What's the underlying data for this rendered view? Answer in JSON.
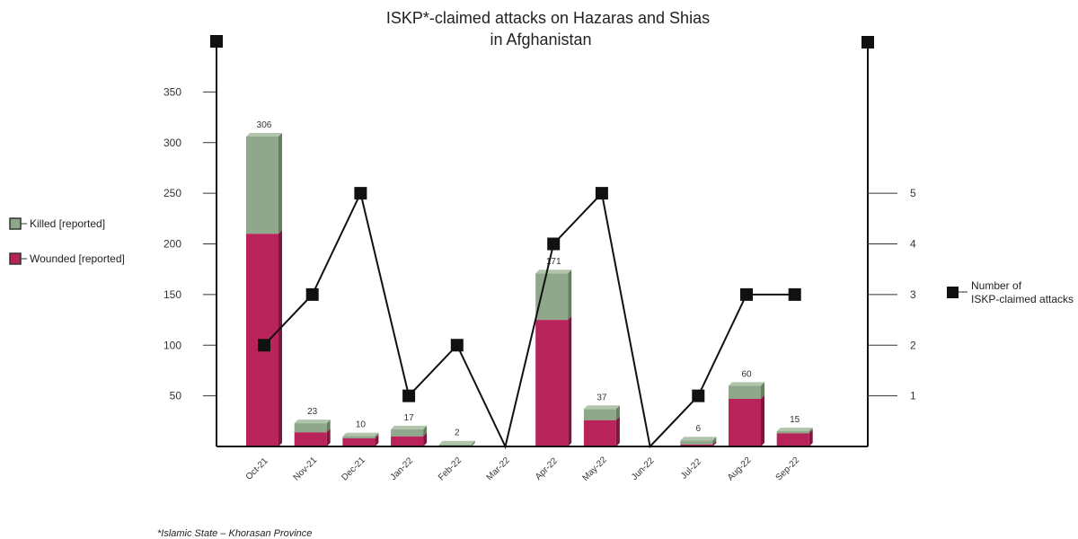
{
  "chart_data": {
    "type": "bar",
    "title_line1": "ISKP*-claimed attacks on Hazaras and Shias",
    "title_line2": "in Afghanistan",
    "categories": [
      "Oct-21",
      "Nov-21",
      "Dec-21",
      "Jan-22",
      "Feb-22",
      "Mar-22",
      "Apr-22",
      "May-22",
      "Jun-22",
      "Jul-22",
      "Aug-22",
      "Sep-22"
    ],
    "stacked": true,
    "series": [
      {
        "name": "Wounded [reported]",
        "color": "#b8235a",
        "values": [
          210,
          14,
          8,
          10,
          0,
          0,
          125,
          26,
          0,
          2,
          47,
          13
        ]
      },
      {
        "name": "Killed [reported]",
        "color": "#8fa88c",
        "values": [
          96,
          9,
          2,
          7,
          2,
          0,
          46,
          11,
          0,
          4,
          13,
          2
        ]
      }
    ],
    "totals": [
      306,
      23,
      10,
      17,
      2,
      null,
      171,
      37,
      null,
      6,
      60,
      15
    ],
    "line_series": {
      "name": "Number of ISKP-claimed attacks",
      "values": [
        2,
        3,
        5,
        1,
        2,
        0,
        4,
        5,
        0,
        1,
        3,
        3
      ]
    },
    "left_axis": {
      "ticks": [
        50,
        100,
        150,
        200,
        250,
        300,
        350
      ],
      "ylim": [
        0,
        400
      ]
    },
    "right_axis": {
      "ticks": [
        1,
        2,
        3,
        4,
        5
      ],
      "ylim": [
        0,
        8
      ]
    },
    "legend": {
      "killed": "Killed [reported]",
      "wounded": "Wounded [reported]",
      "attacks_line1": "Number of",
      "attacks_line2": "ISKP-claimed attacks"
    },
    "footnote": "*Islamic State – Khorasan Province"
  }
}
